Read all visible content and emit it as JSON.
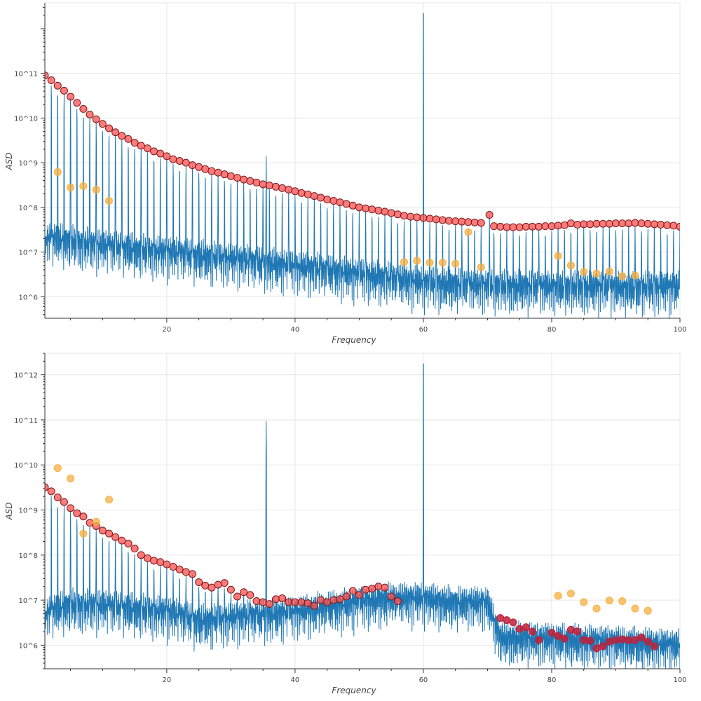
{
  "colors": {
    "signal": "#1f77b4",
    "peak_marker": "#ff4d4d",
    "peak_marker_edge": "#7a1a1a",
    "dark_marker": "#c0203a",
    "orange_marker": "#f5b041",
    "grid": "#e6e6e6",
    "axis": "#333333"
  },
  "chart_data": [
    {
      "type": "line",
      "xlabel": "Frequency",
      "ylabel": "ASD",
      "xlim": [
        1,
        100
      ],
      "ylim": [
        330000,
        3800000000000
      ],
      "y_scale": "log",
      "x_ticks": [
        "20",
        "40",
        "60",
        "80",
        "100"
      ],
      "x_tick_values": [
        20,
        40,
        60,
        80,
        100
      ],
      "y_ticks": [
        "10^6",
        "10^7",
        "10^8",
        "10^9",
        "10^10",
        "10^11"
      ],
      "y_tick_values": [
        1000000,
        10000000,
        100000000,
        1000000000,
        10000000000,
        100000000000
      ],
      "grid": true,
      "series": [
        {
          "kind": "asd_line",
          "x": [
            1,
            10,
            20,
            30,
            40,
            50,
            60,
            70,
            80,
            90,
            100
          ],
          "y": [
            22000000,
            14000000,
            10000000,
            7000000,
            4800000,
            3200000,
            2100000,
            1800000,
            1700000,
            1650000,
            1650000
          ]
        },
        {
          "kind": "red_peaks",
          "x": [
            1,
            2,
            3,
            4,
            5,
            6,
            7,
            8,
            9,
            10,
            11,
            12,
            13,
            14,
            15,
            16,
            17,
            18,
            19,
            20,
            21,
            22,
            23,
            24,
            25,
            26,
            27,
            28,
            29,
            30,
            31,
            32,
            33,
            34,
            35,
            36,
            37,
            38,
            39,
            40,
            41,
            42,
            43,
            44,
            45,
            46,
            47,
            48,
            49,
            50,
            51,
            52,
            53,
            54,
            55,
            56,
            57,
            58,
            59,
            60,
            61,
            62,
            63,
            64,
            65,
            66,
            67,
            68,
            69,
            70.3,
            71,
            72,
            73,
            74,
            75,
            76,
            77,
            78,
            79,
            80,
            81,
            82,
            83,
            84,
            85,
            86,
            87,
            88,
            89,
            90,
            91,
            92,
            93,
            94,
            95,
            96,
            97,
            98,
            99,
            100
          ],
          "y": [
            90000000000,
            70000000000,
            53000000000,
            41000000000,
            30000000000,
            22000000000,
            16000000000,
            12000000000,
            9400000000,
            7400000000,
            5900000000,
            4800000000,
            4000000000,
            3400000000,
            2800000000,
            2400000000,
            2100000000,
            1800000000,
            1600000000,
            1400000000,
            1200000000,
            1100000000,
            1000000000,
            880000000,
            800000000,
            720000000,
            650000000,
            600000000,
            550000000,
            500000000,
            460000000,
            420000000,
            390000000,
            360000000,
            330000000,
            310000000,
            290000000,
            270000000,
            250000000,
            230000000,
            210000000,
            195000000,
            180000000,
            165000000,
            150000000,
            140000000,
            130000000,
            120000000,
            110000000,
            100000000,
            95000000,
            90000000,
            85000000,
            80000000,
            75000000,
            70000000,
            65000000,
            62000000,
            60000000,
            58000000,
            56000000,
            54000000,
            52000000,
            50000000,
            49000000,
            48000000,
            47000000,
            46000000,
            45000000,
            68000000,
            38000000,
            37000000,
            36000000,
            36000000,
            36000000,
            37000000,
            37000000,
            37000000,
            38000000,
            38000000,
            39000000,
            40000000,
            44000000,
            41000000,
            42000000,
            42000000,
            43000000,
            43000000,
            43000000,
            44000000,
            44000000,
            44000000,
            45000000,
            44000000,
            43000000,
            42000000,
            41000000,
            40000000,
            39000000,
            37000000
          ]
        },
        {
          "kind": "orange_points",
          "x": [
            3,
            5,
            7,
            9,
            11,
            57,
            59,
            61,
            63,
            65,
            67,
            69,
            81,
            83,
            85,
            87,
            89,
            91,
            93
          ],
          "y": [
            620000000,
            280000000,
            300000000,
            250000000,
            140000000,
            6000000,
            6400000,
            5800000,
            5800000,
            5500000,
            28000000,
            4600000,
            8200000,
            5000000,
            3600000,
            3300000,
            3700000,
            2900000,
            3000000
          ]
        }
      ]
    },
    {
      "type": "line",
      "xlabel": "Frequency",
      "ylabel": "ASD",
      "xlim": [
        1,
        100
      ],
      "ylim": [
        300000,
        3000000000000
      ],
      "y_scale": "log",
      "x_ticks": [
        "20",
        "40",
        "60",
        "80",
        "100"
      ],
      "x_tick_values": [
        20,
        40,
        60,
        80,
        100
      ],
      "y_ticks": [
        "10^6",
        "10^7",
        "10^8",
        "10^9",
        "10^10",
        "10^11",
        "10^12"
      ],
      "y_tick_values": [
        1000000,
        10000000,
        100000000,
        1000000000,
        10000000000,
        100000000000,
        1000000000000
      ],
      "grid": true,
      "series": [
        {
          "kind": "asd_line",
          "x": [
            1,
            5,
            10,
            20,
            25,
            30,
            40,
            50,
            55,
            60,
            65,
            70,
            72,
            80,
            90,
            100
          ],
          "y": [
            5500000,
            8000000,
            7500000,
            5500000,
            3500000,
            4000000,
            5500000,
            9000000,
            11000000,
            11000000,
            9000000,
            9000000,
            1500000,
            1400000,
            1200000,
            1000000
          ]
        },
        {
          "kind": "red_peaks",
          "x": [
            1,
            2,
            3,
            4,
            5,
            6,
            7,
            8,
            9,
            10,
            11,
            12,
            13,
            14,
            15,
            16,
            17,
            18,
            19,
            20,
            21,
            22,
            23,
            24,
            25,
            26,
            27,
            28,
            29,
            30,
            31,
            32,
            33,
            34,
            35,
            36,
            37,
            38,
            39,
            40,
            41,
            42,
            43,
            44,
            45,
            46,
            47,
            48,
            49,
            50,
            51,
            52,
            53,
            54,
            55,
            56
          ],
          "y": [
            3200000000,
            2600000000,
            1900000000,
            1500000000,
            1100000000,
            850000000,
            720000000,
            520000000,
            440000000,
            350000000,
            300000000,
            250000000,
            210000000,
            180000000,
            140000000,
            100000000,
            85000000,
            75000000,
            70000000,
            62000000,
            55000000,
            48000000,
            42000000,
            38000000,
            25000000,
            21000000,
            19000000,
            22000000,
            24000000,
            17000000,
            12000000,
            15000000,
            13000000,
            9500000,
            9000000,
            8200000,
            10500000,
            11000000,
            9000000,
            9000000,
            9000000,
            8500000,
            7500000,
            10000000,
            9000000,
            10000000,
            10500000,
            12000000,
            16000000,
            13000000,
            17000000,
            18000000,
            20000000,
            19000000,
            12000000,
            9500000
          ]
        },
        {
          "kind": "dark_points",
          "x": [
            72,
            73,
            74,
            75,
            76,
            77,
            78,
            80,
            81,
            82,
            83,
            84,
            85,
            86,
            87,
            88,
            89,
            90,
            91,
            92,
            93,
            94,
            95,
            96
          ],
          "y": [
            4000000,
            3600000,
            3200000,
            2300000,
            2500000,
            2000000,
            1300000,
            1900000,
            1600000,
            1400000,
            2200000,
            2000000,
            1300000,
            1250000,
            850000,
            950000,
            1200000,
            1300000,
            1350000,
            1300000,
            1300000,
            1500000,
            1200000,
            950000
          ]
        },
        {
          "kind": "orange_points",
          "x": [
            3,
            5,
            7,
            9,
            11,
            81,
            83,
            85,
            87,
            89,
            91,
            93,
            95
          ],
          "y": [
            8500000000,
            5000000000,
            300000000,
            550000000,
            1700000000,
            12500000,
            14000000,
            9000000,
            6500000,
            9800000,
            9500000,
            6500000,
            5800000
          ]
        }
      ]
    }
  ]
}
